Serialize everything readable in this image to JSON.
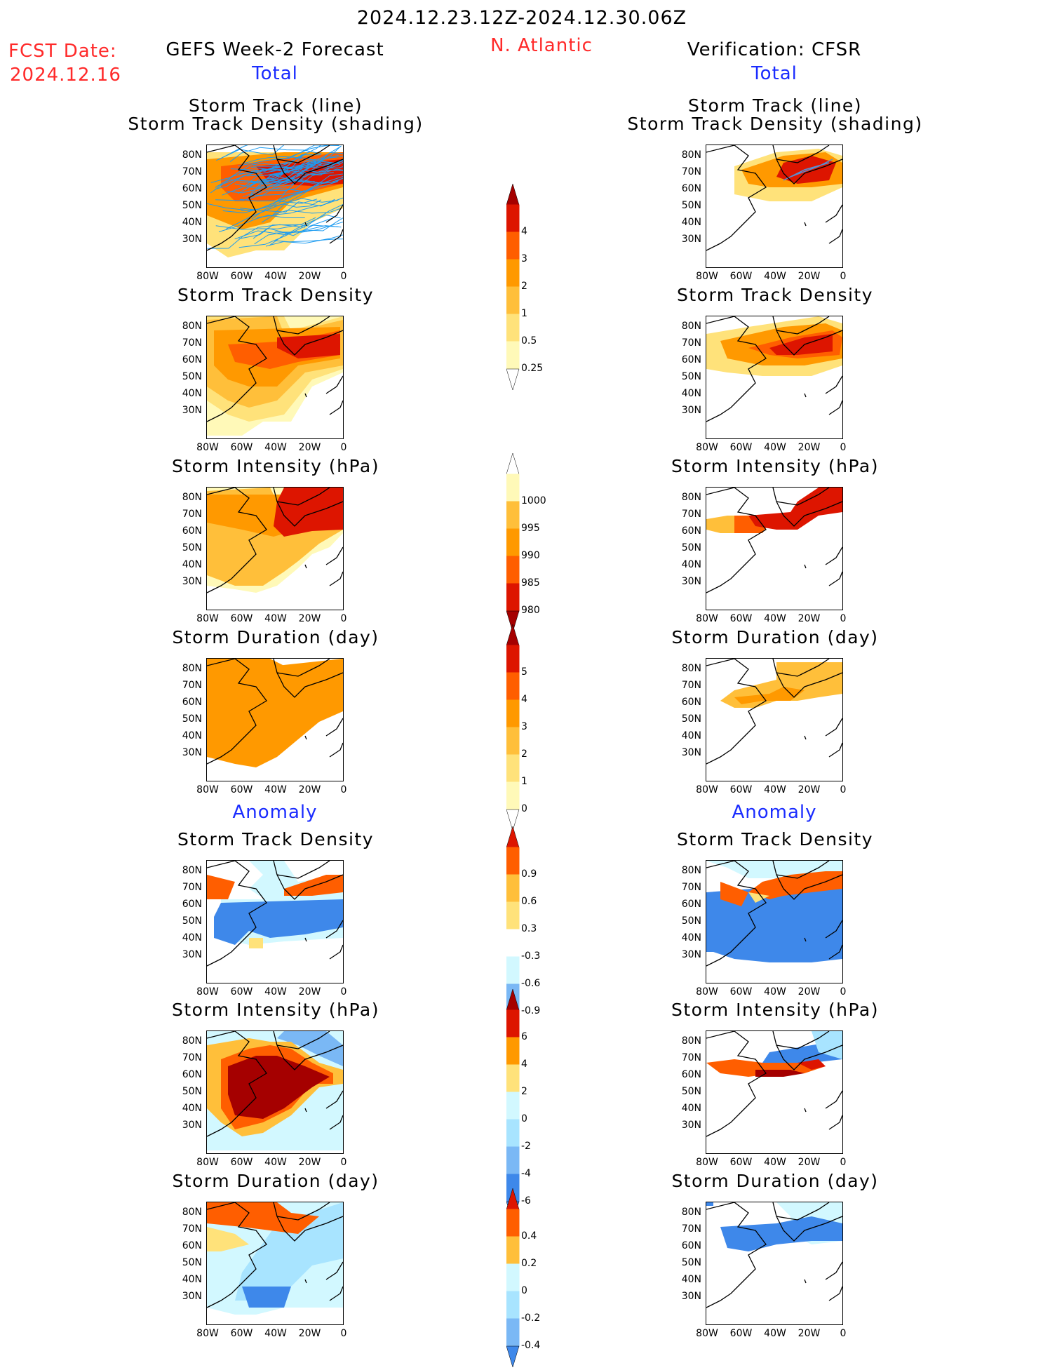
{
  "header": {
    "date_range": "2024.12.23.12Z-2024.12.30.06Z",
    "fcst_label": "FCST Date:",
    "fcst_date": "2024.12.16",
    "left_title": "GEFS Week-2 Forecast",
    "region": "N. Atlantic",
    "right_title": "Verification: CFSR"
  },
  "sections": {
    "total": "Total",
    "anomaly": "Anomaly"
  },
  "panel_titles": {
    "track_line": "Storm Track (line)",
    "track_shading": "Storm Track Density (shading)",
    "density": "Storm Track Density",
    "intensity": "Storm Intensity (hPa)",
    "duration": "Storm Duration (day)"
  },
  "axes": {
    "lat_labels": [
      "80N",
      "70N",
      "60N",
      "50N",
      "40N",
      "30N"
    ],
    "lon_labels": [
      "80W",
      "60W",
      "40W",
      "20W",
      "0"
    ]
  },
  "colorbars": {
    "density": [
      "4",
      "3",
      "2",
      "1",
      "0.5",
      "0.25"
    ],
    "intensity": [
      "1000",
      "995",
      "990",
      "985",
      "980"
    ],
    "duration": [
      "5",
      "4",
      "3",
      "2",
      "1",
      "0"
    ],
    "anom_density": [
      "0.9",
      "0.6",
      "0.3",
      "-0.3",
      "-0.6",
      "-0.9"
    ],
    "anom_intensity": [
      "6",
      "4",
      "2",
      "0",
      "-2",
      "-4",
      "-6"
    ],
    "anom_duration": [
      "0.4",
      "0.2",
      "0",
      "-0.2",
      "-0.4"
    ]
  },
  "colors": {
    "warm": [
      "#fff9b8",
      "#ffe27a",
      "#ffbf3a",
      "#ff9900",
      "#ff5e00",
      "#dd1500",
      "#a50000"
    ],
    "cool": [
      "#d2f8ff",
      "#a8e4ff",
      "#7ab8f5",
      "#3e88ea",
      "#1a5ecc",
      "#0a3fa5"
    ],
    "track_forecast": "#1d9bf0",
    "track_verif": "#5a8ed0"
  }
}
